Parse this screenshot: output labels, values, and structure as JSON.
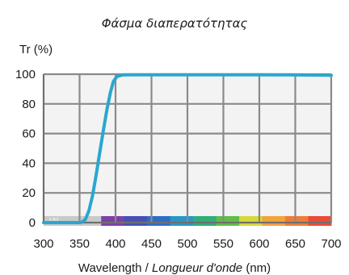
{
  "chart_data": {
    "type": "line",
    "title": "Φάσμα διαπερατότητας",
    "ylabel": "Tr (%)",
    "xlabel": {
      "part1": "Wavelength / ",
      "part2": "Longueur d'onde",
      "part3": " (nm)"
    },
    "xlim": [
      300,
      700
    ],
    "ylim": [
      0,
      100
    ],
    "xticks": [
      "300",
      "350",
      "400",
      "450",
      "500",
      "550",
      "600",
      "650",
      "700"
    ],
    "yticks": [
      "0",
      "20",
      "40",
      "60",
      "80",
      "100"
    ],
    "grid": true,
    "uv_label": "UV",
    "series": [
      {
        "color": "#2aa7cf",
        "x": [
          300,
          330,
          352,
          358,
          363,
          368,
          373,
          378,
          383,
          388,
          393,
          397,
          402,
          410,
          420,
          450,
          500,
          550,
          600,
          650,
          700
        ],
        "y": [
          0,
          0,
          0,
          2,
          8,
          18,
          32,
          47,
          62,
          76,
          88,
          95,
          98.5,
          99.5,
          99.6,
          99.6,
          99.6,
          99.6,
          99.6,
          99.5,
          99.3
        ]
      }
    ],
    "spectrum_colors": [
      "#7d3fa8",
      "#4450b6",
      "#2f6cc9",
      "#2996c4",
      "#2fae7a",
      "#63bc45",
      "#d6d83a",
      "#f2a33a",
      "#f07b3a",
      "#ea4a36"
    ]
  }
}
